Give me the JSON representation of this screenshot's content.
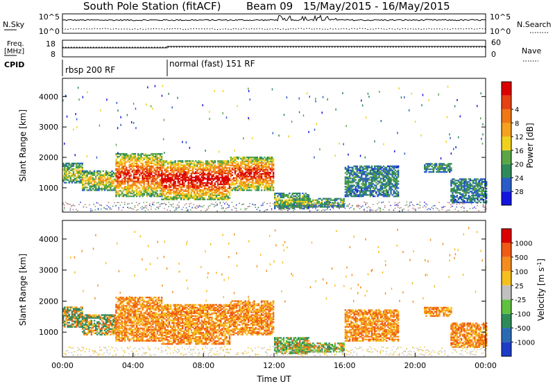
{
  "header": {
    "title": "South Pole Station (fitACF)",
    "beam": "Beam 09",
    "date_range": "15/May/2015 - 16/May/2015"
  },
  "top_panels": {
    "nsky_label": "N.Sky",
    "nsky_ticks": [
      "10^5",
      "10^0"
    ],
    "nsearch_label": "N.Search",
    "nsearch_ticks": [
      "10^5",
      "10^0"
    ],
    "freq_label_1": "Freq.",
    "freq_label_2": "[MHz]",
    "freq_ticks": [
      "18",
      "8"
    ],
    "nave_label": "Nave",
    "nave_ticks": [
      "60",
      "0"
    ],
    "cpid_label": "CPID",
    "cpid_segments": [
      {
        "label": "rbsp 200 RF",
        "start_hour": 0
      },
      {
        "label": "normal (fast) 151 RF",
        "start_hour": 6
      }
    ]
  },
  "chart_data": [
    {
      "type": "heatmap",
      "ylabel": "Slant Range [km]",
      "xlabel": "",
      "xlim_hours": [
        0,
        24
      ],
      "ylim": [
        200,
        4600
      ],
      "y_ticks": [
        "1000",
        "2000",
        "3000",
        "4000"
      ],
      "colorbar": {
        "label": "Power [dB]",
        "ticks": [
          "4",
          "8",
          "12",
          "16",
          "20",
          "24",
          "28"
        ],
        "colors": [
          "#1414e0",
          "#2a5cc8",
          "#2f8a5a",
          "#5aa646",
          "#f0d21e",
          "#f5a01e",
          "#f07814",
          "#e64014",
          "#dc0000"
        ]
      }
    },
    {
      "type": "heatmap",
      "ylabel": "Slant Range [km]",
      "xlabel": "Time UT",
      "xlim_hours": [
        0,
        24
      ],
      "ylim": [
        200,
        4600
      ],
      "y_ticks": [
        "1000",
        "2000",
        "3000",
        "4000"
      ],
      "x_ticks": [
        "00:00",
        "04:00",
        "08:00",
        "12:00",
        "16:00",
        "20:00",
        "00:00"
      ],
      "colorbar": {
        "label": "Velocity [m s",
        "label_sup": "-1",
        "label_end": "]",
        "ticks": [
          "1000",
          "500",
          "100",
          "25",
          "-25",
          "-100",
          "-500",
          "-1000"
        ],
        "colors": [
          "#1e3cc8",
          "#2a6ab4",
          "#2f8a5a",
          "#60c040",
          "#c0c0c0",
          "#f5c01e",
          "#f58c1e",
          "#f05a14",
          "#dc0000"
        ]
      }
    }
  ]
}
